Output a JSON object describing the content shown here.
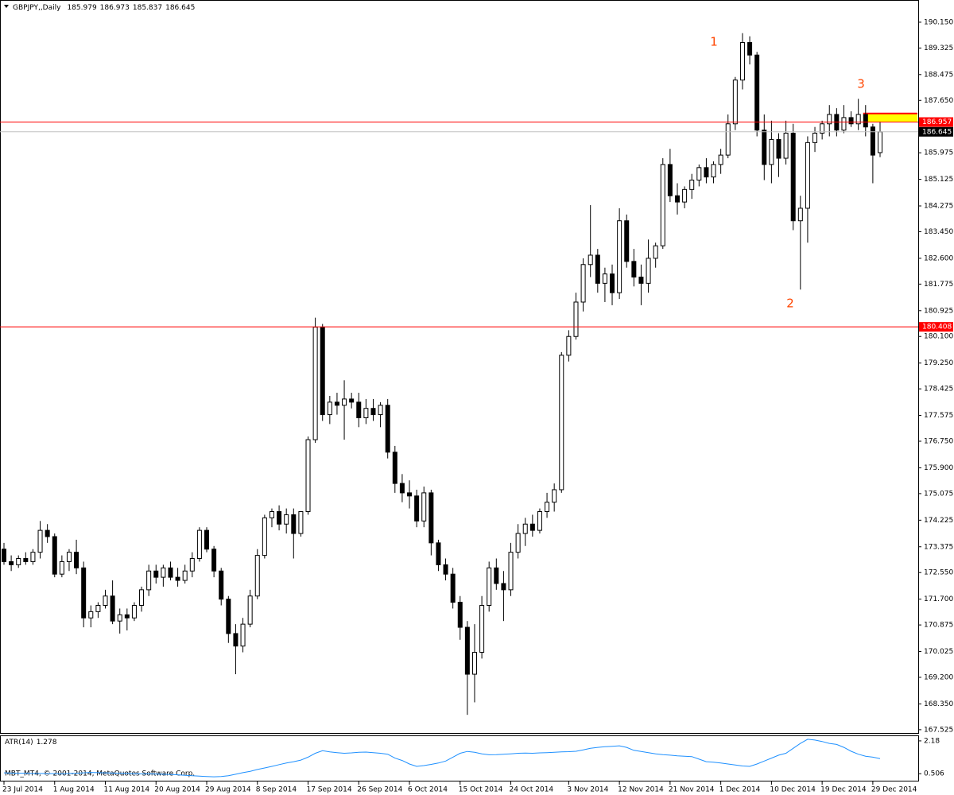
{
  "chart_data": [
    {
      "type": "candlestick",
      "symbol": "GBPJPY,,Daily",
      "categories": [
        "23 Jul 2014",
        null,
        null,
        null,
        null,
        null,
        null,
        "1 Aug 2014",
        null,
        null,
        null,
        null,
        null,
        null,
        "11 Aug 2014",
        null,
        null,
        null,
        null,
        null,
        null,
        "20 Aug 2014",
        null,
        null,
        null,
        null,
        null,
        null,
        "29 Aug 2014",
        null,
        null,
        null,
        null,
        null,
        null,
        "8 Sep 2014",
        null,
        null,
        null,
        null,
        null,
        null,
        "17 Sep 2014",
        null,
        null,
        null,
        null,
        null,
        null,
        "26 Sep 2014",
        null,
        null,
        null,
        null,
        null,
        null,
        "6 Oct 2014",
        null,
        null,
        null,
        null,
        null,
        null,
        "15 Oct 2014",
        null,
        null,
        null,
        null,
        null,
        null,
        "24 Oct 2014",
        null,
        null,
        null,
        null,
        null,
        null,
        null,
        "3 Nov 2014",
        null,
        null,
        null,
        null,
        null,
        null,
        "12 Nov 2014",
        null,
        null,
        null,
        null,
        null,
        null,
        "21 Nov 2014",
        null,
        null,
        null,
        null,
        null,
        null,
        "1 Dec 2014",
        null,
        null,
        null,
        null,
        null,
        null,
        "10 Dec 2014",
        null,
        null,
        null,
        null,
        null,
        null,
        "19 Dec 2014",
        null,
        null,
        null,
        null,
        null,
        null,
        "29 Dec 2014",
        null
      ],
      "open": [
        173.3,
        172.9,
        172.8,
        173.0,
        172.9,
        173.2,
        173.9,
        173.7,
        172.5,
        172.9,
        173.2,
        172.7,
        171.1,
        171.3,
        171.5,
        171.8,
        171.0,
        171.2,
        171.1,
        171.5,
        172.0,
        172.6,
        172.4,
        172.7,
        172.4,
        172.3,
        172.6,
        173.0,
        173.9,
        173.3,
        172.6,
        171.7,
        170.6,
        170.2,
        170.9,
        171.8,
        173.1,
        174.3,
        174.5,
        174.1,
        174.4,
        173.8,
        174.5,
        176.8,
        180.4,
        177.6,
        178.0,
        177.9,
        178.1,
        178.0,
        177.5,
        177.8,
        177.6,
        177.9,
        176.4,
        175.4,
        175.1,
        175.0,
        174.2,
        175.1,
        173.5,
        172.8,
        172.5,
        171.6,
        170.8,
        169.3,
        170.0,
        171.5,
        172.7,
        172.2,
        172.0,
        173.2,
        173.8,
        174.1,
        173.9,
        174.5,
        174.8,
        175.2,
        179.5,
        180.1,
        181.2,
        182.4,
        182.7,
        181.8,
        182.1,
        181.5,
        183.8,
        182.5,
        182.0,
        181.8,
        182.6,
        183.0,
        185.6,
        184.6,
        184.4,
        184.8,
        185.1,
        185.5,
        185.2,
        185.6,
        185.9,
        186.9,
        188.3,
        189.5,
        189.1,
        186.7,
        185.6,
        186.4,
        185.8,
        186.6,
        183.8,
        184.2,
        186.3,
        186.6,
        186.9,
        187.2,
        186.7,
        187.1,
        186.9,
        187.2,
        186.8,
        185.979
      ],
      "high": [
        173.5,
        173.1,
        173.1,
        173.2,
        173.3,
        174.2,
        174.1,
        173.8,
        173.1,
        173.3,
        173.6,
        172.9,
        171.5,
        171.6,
        172.0,
        172.3,
        171.4,
        171.4,
        171.6,
        172.1,
        172.8,
        172.8,
        172.8,
        172.9,
        172.7,
        172.8,
        173.2,
        174.0,
        174.0,
        173.4,
        172.7,
        171.8,
        170.9,
        171.1,
        172.0,
        173.3,
        174.4,
        174.6,
        174.7,
        174.6,
        174.6,
        174.5,
        176.9,
        180.7,
        180.5,
        178.2,
        178.3,
        178.7,
        178.3,
        178.3,
        178.1,
        178.1,
        178.0,
        178.1,
        176.6,
        175.7,
        175.5,
        175.2,
        175.3,
        175.2,
        173.6,
        173.0,
        172.7,
        171.8,
        171.0,
        170.9,
        171.8,
        172.9,
        173.0,
        172.6,
        173.5,
        174.1,
        174.3,
        174.4,
        174.6,
        175.1,
        175.4,
        179.6,
        180.3,
        181.5,
        182.6,
        184.3,
        182.9,
        182.3,
        182.4,
        184.2,
        184.0,
        182.9,
        182.4,
        183.2,
        183.1,
        185.8,
        186.1,
        185.0,
        184.9,
        185.3,
        185.6,
        185.8,
        185.7,
        186.1,
        187.2,
        188.4,
        189.8,
        189.7,
        189.2,
        187.2,
        187.0,
        186.6,
        187.0,
        186.9,
        184.6,
        186.5,
        186.8,
        187.0,
        187.5,
        187.4,
        187.5,
        187.3,
        187.7,
        187.5,
        186.9,
        186.973
      ],
      "low": [
        172.8,
        172.6,
        172.7,
        172.8,
        172.8,
        173.0,
        173.5,
        172.4,
        172.4,
        172.6,
        172.5,
        170.8,
        170.8,
        171.1,
        171.4,
        170.9,
        170.6,
        170.7,
        171.0,
        171.3,
        171.8,
        172.2,
        172.1,
        172.3,
        172.1,
        172.2,
        172.4,
        172.9,
        173.2,
        172.4,
        171.5,
        170.3,
        169.3,
        170.0,
        170.8,
        171.7,
        173.0,
        174.0,
        173.9,
        173.8,
        173.0,
        173.7,
        174.4,
        176.7,
        177.4,
        177.3,
        177.6,
        176.8,
        177.8,
        177.2,
        177.3,
        177.4,
        177.2,
        176.2,
        175.1,
        174.8,
        174.6,
        174.0,
        174.0,
        173.1,
        172.6,
        172.3,
        171.4,
        170.4,
        168.0,
        168.4,
        169.8,
        171.3,
        172.0,
        171.0,
        171.8,
        173.0,
        173.4,
        173.7,
        173.8,
        174.3,
        174.5,
        175.1,
        179.3,
        180.0,
        180.9,
        182.0,
        181.5,
        181.2,
        181.1,
        181.3,
        182.3,
        181.7,
        181.1,
        181.5,
        182.3,
        182.9,
        184.4,
        184.0,
        184.2,
        184.5,
        184.9,
        185.0,
        185.0,
        185.3,
        185.8,
        186.7,
        188.0,
        188.8,
        186.5,
        185.1,
        185.0,
        185.2,
        185.6,
        183.5,
        181.6,
        183.1,
        186.0,
        186.4,
        186.5,
        186.5,
        186.6,
        186.8,
        186.7,
        186.5,
        185.0,
        185.837
      ],
      "close": [
        172.9,
        172.8,
        173.0,
        172.9,
        173.2,
        173.9,
        173.7,
        172.5,
        172.9,
        173.2,
        172.7,
        171.1,
        171.3,
        171.5,
        171.8,
        171.0,
        171.2,
        171.1,
        171.5,
        172.0,
        172.6,
        172.4,
        172.7,
        172.4,
        172.3,
        172.6,
        173.0,
        173.9,
        173.3,
        172.6,
        171.7,
        170.6,
        170.2,
        170.9,
        171.8,
        173.1,
        174.3,
        174.5,
        174.1,
        174.4,
        173.8,
        174.5,
        176.8,
        180.4,
        177.6,
        178.0,
        177.9,
        178.1,
        178.0,
        177.5,
        177.8,
        177.6,
        177.9,
        176.4,
        175.4,
        175.1,
        175.0,
        174.2,
        175.1,
        173.5,
        172.8,
        172.5,
        171.6,
        170.8,
        169.3,
        170.0,
        171.5,
        172.7,
        172.2,
        172.0,
        173.2,
        173.8,
        174.1,
        173.9,
        174.5,
        174.8,
        175.2,
        179.5,
        180.1,
        181.2,
        182.4,
        182.7,
        181.8,
        182.1,
        181.5,
        183.8,
        182.5,
        182.0,
        181.8,
        182.6,
        183.0,
        185.6,
        184.6,
        184.4,
        184.8,
        185.1,
        185.5,
        185.2,
        185.6,
        185.9,
        186.9,
        188.3,
        189.5,
        189.1,
        186.7,
        185.6,
        186.4,
        185.8,
        186.6,
        183.8,
        184.2,
        186.3,
        186.6,
        186.9,
        187.2,
        186.7,
        187.1,
        186.9,
        187.2,
        186.8,
        185.9,
        186.645
      ],
      "up_color": "#ffffff",
      "down_color": "#000000",
      "ylim": [
        167.42,
        190.86
      ],
      "yticks": [
        {
          "value": 190.15,
          "label": "190.150"
        },
        189.325,
        188.475,
        {
          "value": 187.65,
          "label": "187.650"
        },
        185.975,
        185.125,
        184.275,
        {
          "value": 183.45,
          "label": "183.450"
        },
        {
          "value": 182.6,
          "label": "182.600"
        },
        181.775,
        180.925,
        {
          "value": 180.1,
          "label": "180.100"
        },
        {
          "value": 179.25,
          "label": "179.250"
        },
        178.425,
        177.575,
        {
          "value": 176.75,
          "label": "176.750"
        },
        {
          "value": 175.9,
          "label": "175.900"
        },
        175.075,
        174.225,
        173.375,
        {
          "value": 172.55,
          "label": "172.550"
        },
        {
          "value": 171.7,
          "label": "171.700"
        },
        170.875,
        170.025,
        {
          "value": 169.2,
          "label": "169.200"
        },
        {
          "value": 168.35,
          "label": "168.350"
        },
        167.525
      ],
      "levels": [
        186.957,
        180.408
      ],
      "level_color": "#ff0000",
      "zone": [
        186.957,
        187.23
      ],
      "zone_color": "#ffff00",
      "annotations": [
        "1",
        "2",
        "3"
      ],
      "annotation_color": "#ff4500"
    },
    {
      "type": "line",
      "title": "ATR(14)",
      "color": "#1e90ff",
      "values": [
        0.55,
        0.54,
        0.53,
        0.53,
        0.52,
        0.52,
        0.51,
        0.51,
        0.5,
        0.52,
        0.53,
        0.55,
        0.57,
        0.56,
        0.55,
        0.54,
        0.53,
        0.52,
        0.51,
        0.5,
        0.5,
        0.49,
        0.48,
        0.47,
        0.45,
        0.42,
        0.4,
        0.38,
        0.36,
        0.35,
        0.36,
        0.4,
        0.48,
        0.56,
        0.63,
        0.72,
        0.8,
        0.88,
        0.97,
        1.05,
        1.12,
        1.2,
        1.35,
        1.55,
        1.68,
        1.62,
        1.58,
        1.55,
        1.57,
        1.6,
        1.61,
        1.58,
        1.55,
        1.5,
        1.3,
        1.18,
        1.0,
        0.88,
        0.92,
        0.98,
        1.05,
        1.15,
        1.35,
        1.55,
        1.64,
        1.6,
        1.52,
        1.47,
        1.48,
        1.5,
        1.52,
        1.55,
        1.56,
        1.55,
        1.57,
        1.58,
        1.6,
        1.62,
        1.63,
        1.65,
        1.72,
        1.8,
        1.85,
        1.88,
        1.9,
        1.93,
        1.85,
        1.7,
        1.64,
        1.58,
        1.52,
        1.48,
        1.45,
        1.42,
        1.4,
        1.38,
        1.25,
        1.12,
        1.09,
        1.05,
        1.0,
        0.95,
        0.9,
        0.88,
        1.0,
        1.15,
        1.3,
        1.45,
        1.55,
        1.8,
        2.05,
        2.26,
        2.22,
        2.15,
        2.05,
        2.0,
        1.85,
        1.65,
        1.5,
        1.4,
        1.35,
        1.278
      ],
      "ylim": [
        0.15,
        2.42
      ],
      "yticks": [
        0.506,
        2.18
      ],
      "watermark": "MBT_MT4, © 2001-2014, MetaQuotes Software Corp."
    }
  ]
}
